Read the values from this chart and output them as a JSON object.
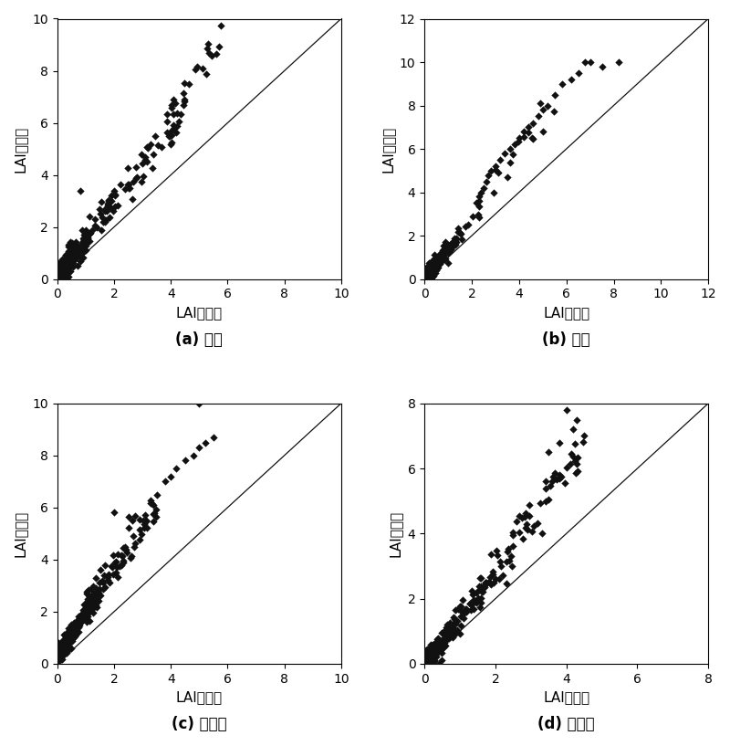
{
  "subplots": [
    {
      "label_bold": "(a)",
      "label_cn": " 作物",
      "xlabel_lai": "LAI",
      "xlabel_cn": "有效值",
      "ylabel_lai": "LAI",
      "ylabel_cn": "真实值",
      "xlim": [
        0,
        10
      ],
      "ylim": [
        0,
        10
      ],
      "xticks": [
        0,
        2,
        4,
        6,
        8,
        10
      ],
      "yticks": [
        0,
        2,
        4,
        6,
        8,
        10
      ],
      "line_end": 10
    },
    {
      "label_bold": "(b)",
      "label_cn": " 草地",
      "xlabel_lai": "LAI",
      "xlabel_cn": "有效值",
      "ylabel_lai": "LAI",
      "ylabel_cn": "真实值",
      "xlim": [
        0,
        12
      ],
      "ylim": [
        0,
        12
      ],
      "xticks": [
        0,
        2,
        4,
        6,
        8,
        10,
        12
      ],
      "yticks": [
        0,
        2,
        4,
        6,
        8,
        10,
        12
      ],
      "line_end": 12
    },
    {
      "label_bold": "(c)",
      "label_cn": " 阔叶林",
      "xlabel_lai": "LAI",
      "xlabel_cn": "有效值",
      "ylabel_lai": "LAI",
      "ylabel_cn": "真实值",
      "xlim": [
        0,
        10
      ],
      "ylim": [
        0,
        10
      ],
      "xticks": [
        0,
        2,
        4,
        6,
        8,
        10
      ],
      "yticks": [
        0,
        2,
        4,
        6,
        8,
        10
      ],
      "line_end": 10
    },
    {
      "label_bold": "(d)",
      "label_cn": " 针叶林",
      "xlabel_lai": "LAI",
      "xlabel_cn": "有效值",
      "ylabel_lai": "LAI",
      "ylabel_cn": "真实值",
      "xlim": [
        0,
        8
      ],
      "ylim": [
        0,
        8
      ],
      "xticks": [
        0,
        2,
        4,
        6,
        8
      ],
      "yticks": [
        0,
        2,
        4,
        6,
        8
      ],
      "line_end": 8
    }
  ],
  "marker": "D",
  "marker_size": 18,
  "marker_color": "#111111",
  "line_color": "#111111",
  "line_width": 0.9,
  "label_fontsize": 11,
  "tick_fontsize": 10,
  "caption_fontsize": 12,
  "background_color": "#ffffff"
}
